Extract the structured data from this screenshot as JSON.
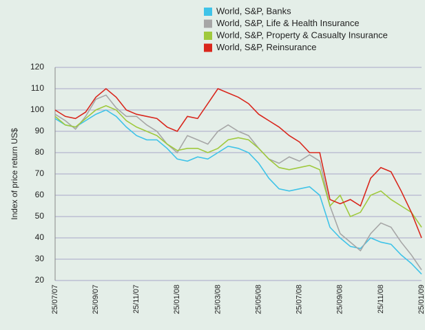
{
  "chart_data": {
    "type": "line",
    "y_label": "Index of price return US$",
    "categories": [
      "25/07/07",
      null,
      null,
      null,
      "25/09/07",
      null,
      null,
      null,
      "25/11/07",
      null,
      null,
      null,
      "25/01/08",
      null,
      null,
      null,
      "25/03/08",
      null,
      null,
      null,
      "25/05/08",
      null,
      null,
      null,
      "25/07/08",
      null,
      null,
      null,
      "25/09/08",
      null,
      null,
      null,
      "25/11/08",
      null,
      null,
      null,
      "25/01/09"
    ],
    "series": [
      {
        "name": "World, S&P, Banks",
        "color": "#3ec3e8",
        "values": [
          96,
          93,
          92,
          95,
          98,
          100,
          97,
          92,
          88,
          86,
          86,
          82,
          77,
          76,
          78,
          77,
          80,
          83,
          82,
          80,
          75,
          68,
          63,
          62,
          63,
          64,
          60,
          45,
          40,
          36,
          35,
          40,
          38,
          37,
          32,
          28,
          23
        ]
      },
      {
        "name": "World, S&P, Life & Health Insurance",
        "color": "#a6a6a6",
        "values": [
          98,
          95,
          91,
          97,
          105,
          107,
          101,
          97,
          97,
          93,
          90,
          84,
          80,
          88,
          86,
          84,
          90,
          93,
          90,
          88,
          82,
          77,
          75,
          78,
          76,
          79,
          76,
          55,
          42,
          38,
          34,
          42,
          47,
          45,
          38,
          32,
          25
        ]
      },
      {
        "name": "World, S&P, Property & Casualty Insurance",
        "color": "#9fc93c",
        "values": [
          97,
          93,
          92,
          96,
          100,
          102,
          100,
          95,
          92,
          90,
          88,
          84,
          81,
          82,
          82,
          80,
          82,
          86,
          87,
          86,
          82,
          77,
          73,
          72,
          73,
          74,
          72,
          55,
          60,
          50,
          52,
          60,
          62,
          58,
          55,
          52,
          45
        ]
      },
      {
        "name": "World, S&P, Reinsurance",
        "color": "#d9261c",
        "values": [
          100,
          97,
          96,
          99,
          106,
          110,
          106,
          100,
          98,
          97,
          96,
          92,
          90,
          97,
          96,
          103,
          110,
          108,
          106,
          103,
          98,
          95,
          92,
          88,
          85,
          80,
          80,
          58,
          56,
          58,
          55,
          68,
          73,
          71,
          62,
          52,
          40
        ]
      }
    ],
    "ylim": [
      20,
      120
    ],
    "yticks": [
      20,
      30,
      40,
      50,
      60,
      70,
      80,
      90,
      100,
      110,
      120
    ],
    "grid": true
  }
}
